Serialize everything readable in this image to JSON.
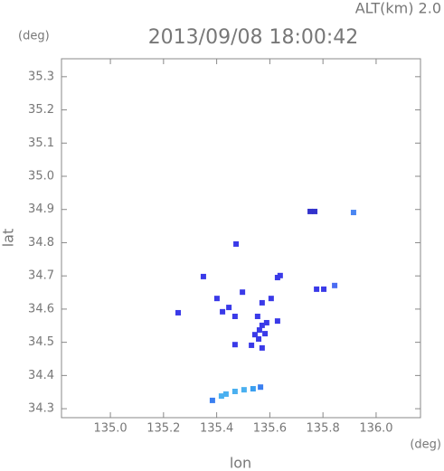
{
  "chart_data": {
    "type": "scatter",
    "title": "2013/09/08 18:00:42",
    "altitude_label": "ALT(km) 2.0",
    "y_unit": "(deg)",
    "x_unit": "(deg)",
    "xlabel": "lon",
    "ylabel": "lat",
    "xlim": [
      134.816,
      136.167
    ],
    "ylim": [
      34.273,
      35.354
    ],
    "xticks": [
      {
        "value": 135.0,
        "label": "135.0"
      },
      135.2,
      135.4,
      135.6,
      135.8,
      {
        "value": 136.0,
        "label": "136.0"
      }
    ],
    "yticks": [
      34.3,
      34.4,
      34.5,
      34.6,
      34.7,
      34.8,
      34.9,
      {
        "value": 35.0,
        "label": "35.0"
      },
      35.1,
      35.2,
      35.3
    ],
    "x": [
      135.915,
      135.752,
      135.769,
      135.844,
      135.776,
      135.803,
      135.629,
      135.639,
      135.605,
      135.571,
      135.35,
      135.401,
      135.446,
      135.497,
      135.422,
      135.255,
      135.469,
      135.554,
      135.561,
      135.571,
      135.544,
      135.582,
      135.588,
      135.558,
      135.629,
      135.469,
      135.531,
      135.571,
      135.473,
      135.384,
      135.418,
      135.435,
      135.469,
      135.503,
      135.537,
      135.565
    ],
    "y": [
      34.891,
      34.894,
      34.894,
      34.671,
      34.66,
      34.66,
      34.695,
      34.701,
      34.632,
      34.619,
      34.698,
      34.632,
      34.605,
      34.651,
      34.592,
      34.589,
      34.578,
      34.578,
      34.537,
      34.551,
      34.523,
      34.526,
      34.559,
      34.51,
      34.564,
      34.493,
      34.491,
      34.483,
      34.796,
      34.325,
      34.338,
      34.344,
      34.352,
      34.357,
      34.36,
      34.365
    ],
    "colors": [
      "#4a86f2",
      "#3333cc",
      "#3333cc",
      "#4a6cf2",
      "#3a3ae8",
      "#3a3ae8",
      "#3a3ae8",
      "#3a3ae8",
      "#3a3ae8",
      "#3a3ae8",
      "#3a3ae8",
      "#3a3ae8",
      "#3a3ae8",
      "#3a3ae8",
      "#3a3ae8",
      "#3a3ae8",
      "#3a3ae8",
      "#3a3ae8",
      "#3a3ae8",
      "#3a3ae8",
      "#3a3ae8",
      "#3a3ae8",
      "#3a3ae8",
      "#3a3ae8",
      "#3a3ae8",
      "#3a3ae8",
      "#3a3ae8",
      "#3a3ae8",
      "#3a3ae8",
      "#3a7ff0",
      "#4ab0f0",
      "#4ab0f0",
      "#4ab0f0",
      "#4ab0f0",
      "#3a9ff0",
      "#3a7ff0"
    ]
  }
}
